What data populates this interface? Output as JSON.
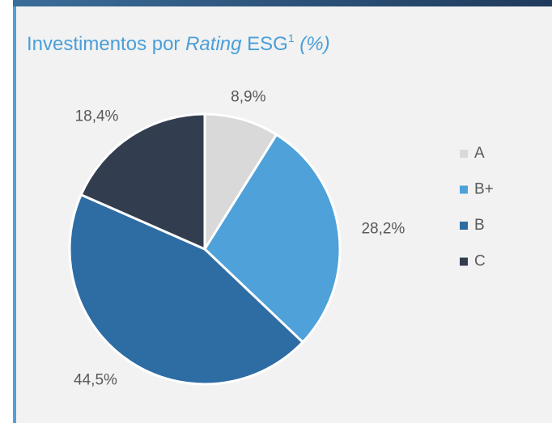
{
  "chart_data": {
    "type": "pie",
    "title": [
      "Investimentos por ",
      "Rating",
      " ESG",
      "1",
      " (%)"
    ],
    "categories": [
      "A",
      "B+",
      "B",
      "C"
    ],
    "values": [
      8.9,
      28.2,
      44.5,
      18.4
    ],
    "value_labels": [
      "8,9%",
      "28,2%",
      "44,5%",
      "18,4%"
    ],
    "colors": [
      "#d9d9d9",
      "#4ea1d9",
      "#2e6ca4",
      "#323e50"
    ],
    "legend": "right"
  }
}
